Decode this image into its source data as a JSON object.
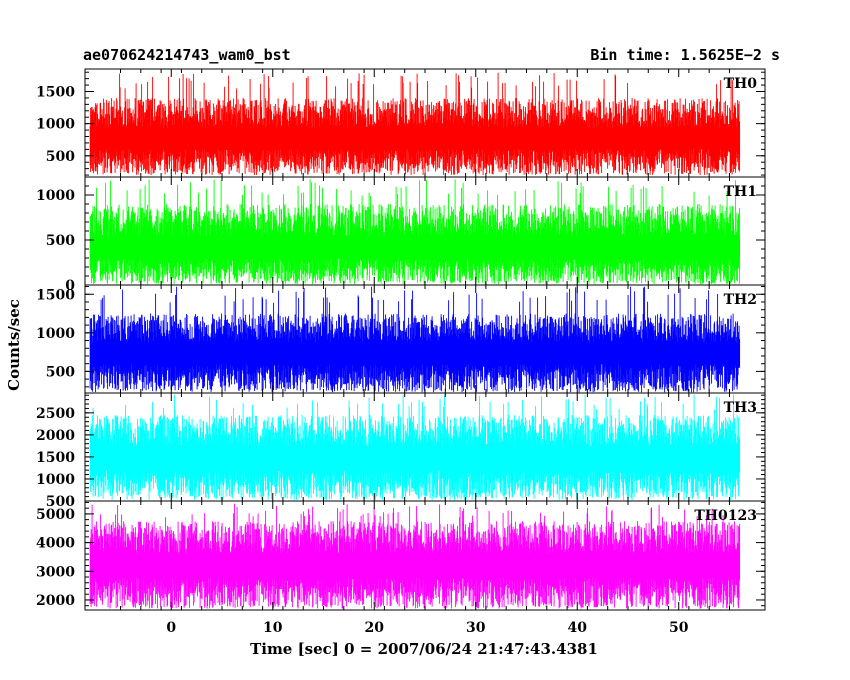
{
  "chart_data": {
    "type": "line",
    "title": "ae070624214743_wam0_bst",
    "subtitle": "Bin time: 1.5625E−2 s",
    "xlabel": "Time [sec] 0 = 2007/06/24 21:47:43.4381",
    "ylabel": "Counts/sec",
    "xlim": [
      -8.5,
      58.5
    ],
    "xticks": [
      0,
      10,
      20,
      30,
      40,
      50
    ],
    "x_range_data": [
      -8.0,
      56.0
    ],
    "bin_time": 0.015625,
    "series": [
      {
        "name": "TH0",
        "color": "#ff0000",
        "ylim": [
          170,
          1850
        ],
        "yticks": [
          500,
          1000,
          1500
        ],
        "mean": 780,
        "min": 200,
        "max": 1800,
        "peak_typical": 1400
      },
      {
        "name": "TH1",
        "color": "#00ff00",
        "ylim": [
          0,
          1200
        ],
        "yticks": [
          0,
          500,
          1000
        ],
        "mean": 420,
        "min": 10,
        "max": 1180,
        "peak_typical": 900
      },
      {
        "name": "TH2",
        "color": "#0000ff",
        "ylim": [
          220,
          1620
        ],
        "yticks": [
          500,
          1000,
          1500
        ],
        "mean": 750,
        "min": 230,
        "max": 1600,
        "peak_typical": 1250
      },
      {
        "name": "TH3",
        "color": "#00ffff",
        "ylim": [
          500,
          2950
        ],
        "yticks": [
          500,
          1000,
          1500,
          2000,
          2500
        ],
        "mean": 1500,
        "min": 520,
        "max": 2920,
        "peak_typical": 2450
      },
      {
        "name": "TH0123",
        "color": "#ff00ff",
        "ylim": [
          1650,
          5450
        ],
        "yticks": [
          2000,
          3000,
          4000,
          5000
        ],
        "mean": 3250,
        "min": 1700,
        "max": 5400,
        "peak_typical": 4750
      }
    ],
    "grid": false,
    "legend": "none"
  }
}
